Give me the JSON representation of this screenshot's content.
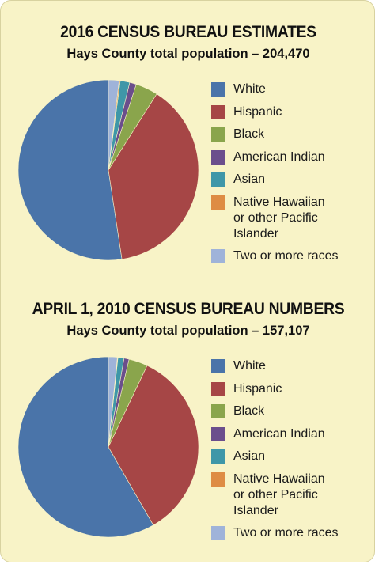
{
  "chart_data": [
    {
      "type": "pie",
      "title": "2016 CENSUS BUREAU ESTIMATES",
      "subtitle": "Hays County total population – 204,470",
      "categories": [
        "White",
        "Hispanic",
        "Black",
        "American Indian",
        "Asian",
        "Native Hawaiian\nor other Pacific\nIslander",
        "Two or more races"
      ],
      "values": [
        52.4,
        38.6,
        4.0,
        1.2,
        1.7,
        0.2,
        1.9
      ],
      "unit": "percent (estimated)",
      "colors": [
        "#4a74a9",
        "#a64646",
        "#8aa54c",
        "#6b4e8c",
        "#3f97a8",
        "#de8c44",
        "#9fb3d9"
      ],
      "legend_position": "right"
    },
    {
      "type": "pie",
      "title": "APRIL 1, 2010 CENSUS BUREAU NUMBERS",
      "subtitle": "Hays County total population – 157,107",
      "categories": [
        "White",
        "Hispanic",
        "Black",
        "American Indian",
        "Asian",
        "Native Hawaiian\nor other Pacific\nIslander",
        "Two or more races"
      ],
      "values": [
        58.6,
        34.8,
        3.4,
        0.9,
        1.1,
        0.1,
        1.6
      ],
      "unit": "percent (estimated)",
      "colors": [
        "#4a74a9",
        "#a64646",
        "#8aa54c",
        "#6b4e8c",
        "#3f97a8",
        "#de8c44",
        "#9fb3d9"
      ],
      "legend_position": "right"
    }
  ]
}
